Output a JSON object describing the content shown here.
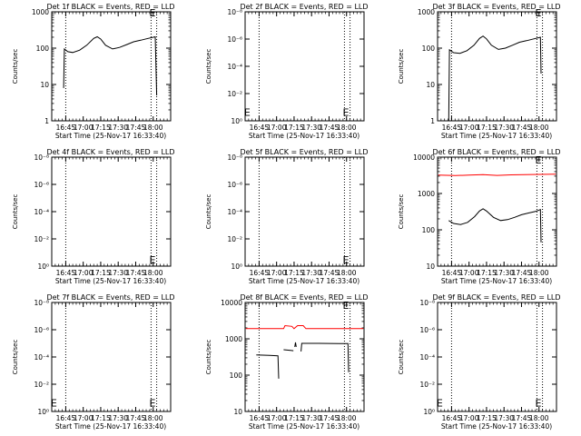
{
  "chart_data": [
    {
      "type": "line",
      "title": "Det 1f BLACK = Events, RED = LLD",
      "xlabel": "Start Time (25-Nov-17 16:33:40)",
      "ylabel": "Counts/sec",
      "y_scale": "log",
      "ylim": [
        1,
        1000
      ],
      "y_ticks": [
        "1",
        "10",
        "100",
        "1000"
      ],
      "xlim": [
        16.55,
        18.25
      ],
      "x_ticks": [
        "16:45",
        "17:00",
        "17:15",
        "17:30",
        "17:45",
        "18:00"
      ],
      "vlines": [
        16.75,
        17.97,
        18.05
      ],
      "markers": [
        {
          "x": 17.99,
          "y": 1000,
          "label": "E"
        }
      ],
      "series": [
        {
          "color": "#000000",
          "segments": [
            [
              [
                16.72,
                8
              ],
              [
                16.73,
                95
              ],
              [
                16.78,
                80
              ],
              [
                16.85,
                76
              ],
              [
                16.95,
                88
              ],
              [
                17.05,
                120
              ],
              [
                17.15,
                185
              ],
              [
                17.2,
                205
              ],
              [
                17.25,
                178
              ],
              [
                17.32,
                120
              ],
              [
                17.42,
                95
              ],
              [
                17.52,
                105
              ],
              [
                17.62,
                125
              ],
              [
                17.72,
                150
              ],
              [
                17.82,
                165
              ],
              [
                17.9,
                180
              ],
              [
                18.03,
                205
              ],
              [
                18.05,
                5
              ]
            ]
          ]
        }
      ]
    },
    {
      "type": "line",
      "title": "Det 2f BLACK = Events, RED = LLD",
      "xlabel": "Start Time (25-Nov-17 16:33:40)",
      "ylabel": "Counts/sec",
      "y_scale": "log",
      "ylim": [
        1,
        1e-08
      ],
      "y_ticks": [
        "10⁰",
        "10⁻²",
        "10⁻⁴",
        "10⁻⁶",
        "10⁻⁸"
      ],
      "xlim": [
        16.55,
        18.25
      ],
      "x_ticks": [
        "16:45",
        "17:00",
        "17:15",
        "17:30",
        "17:45",
        "18:00"
      ],
      "vlines": [
        16.75,
        17.97,
        18.05
      ],
      "markers": [
        {
          "x": 16.58,
          "y": 0.2,
          "label": "E"
        },
        {
          "x": 17.99,
          "y": 0.2,
          "label": "E"
        }
      ],
      "series": []
    },
    {
      "type": "line",
      "title": "Det 3f BLACK = Events, RED = LLD",
      "xlabel": "Start Time (25-Nov-17 16:33:40)",
      "ylabel": "Counts/sec",
      "y_scale": "log",
      "ylim": [
        1,
        1000
      ],
      "y_ticks": [
        "1",
        "10",
        "100",
        "1000"
      ],
      "xlim": [
        16.55,
        18.25
      ],
      "x_ticks": [
        "16:45",
        "17:00",
        "17:15",
        "17:30",
        "17:45",
        "18:00"
      ],
      "vlines": [
        16.75,
        17.97,
        18.05
      ],
      "markers": [
        {
          "x": 17.99,
          "y": 1000,
          "label": "E"
        }
      ],
      "series": [
        {
          "color": "#000000",
          "segments": [
            [
              [
                16.71,
                1
              ],
              [
                16.72,
                90
              ],
              [
                16.78,
                75
              ],
              [
                16.87,
                72
              ],
              [
                16.97,
                85
              ],
              [
                17.07,
                120
              ],
              [
                17.15,
                185
              ],
              [
                17.2,
                215
              ],
              [
                17.25,
                180
              ],
              [
                17.32,
                120
              ],
              [
                17.42,
                92
              ],
              [
                17.52,
                100
              ],
              [
                17.62,
                120
              ],
              [
                17.72,
                145
              ],
              [
                17.82,
                160
              ],
              [
                17.9,
                175
              ],
              [
                18.02,
                200
              ],
              [
                18.03,
                20
              ]
            ]
          ]
        }
      ]
    },
    {
      "type": "line",
      "title": "Det 4f BLACK = Events, RED = LLD",
      "xlabel": "Start Time (25-Nov-17 16:33:40)",
      "ylabel": "Counts/sec",
      "y_scale": "log",
      "ylim": [
        1,
        1e-08
      ],
      "y_ticks": [
        "10⁰",
        "10⁻²",
        "10⁻⁴",
        "10⁻⁶",
        "10⁻⁸"
      ],
      "xlim": [
        16.55,
        18.25
      ],
      "x_ticks": [
        "16:45",
        "17:00",
        "17:15",
        "17:30",
        "17:45",
        "18:00"
      ],
      "vlines": [
        16.75,
        17.97,
        18.05
      ],
      "markers": [
        {
          "x": 17.99,
          "y": 0.3,
          "label": "E"
        }
      ],
      "series": []
    },
    {
      "type": "line",
      "title": "Det 5f BLACK = Events, RED = LLD",
      "xlabel": "Start Time (25-Nov-17 16:33:40)",
      "ylabel": "Counts/sec",
      "y_scale": "log",
      "ylim": [
        1,
        1e-08
      ],
      "y_ticks": [
        "10⁰",
        "10⁻²",
        "10⁻⁴",
        "10⁻⁶",
        "10⁻⁸"
      ],
      "xlim": [
        16.55,
        18.25
      ],
      "x_ticks": [
        "16:45",
        "17:00",
        "17:15",
        "17:30",
        "17:45",
        "18:00"
      ],
      "vlines": [
        16.75,
        17.97,
        18.05
      ],
      "markers": [
        {
          "x": 17.99,
          "y": 0.3,
          "label": "E"
        }
      ],
      "series": []
    },
    {
      "type": "line",
      "title": "Det 6f BLACK = Events, RED = LLD",
      "xlabel": "Start Time (25-Nov-17 16:33:40)",
      "ylabel": "Counts/sec",
      "y_scale": "log",
      "ylim": [
        10,
        10000
      ],
      "y_ticks": [
        "10",
        "100",
        "1000",
        "10000"
      ],
      "xlim": [
        16.55,
        18.25
      ],
      "x_ticks": [
        "16:45",
        "17:00",
        "17:15",
        "17:30",
        "17:45",
        "18:00"
      ],
      "vlines": [
        16.75,
        17.97,
        18.05
      ],
      "markers": [
        {
          "x": 17.99,
          "y": 9000,
          "label": "E"
        }
      ],
      "series": [
        {
          "color": "#ff0000",
          "segments": [
            [
              [
                16.56,
                3200
              ],
              [
                16.8,
                3100
              ],
              [
                17.0,
                3200
              ],
              [
                17.2,
                3300
              ],
              [
                17.4,
                3150
              ],
              [
                17.6,
                3250
              ],
              [
                17.8,
                3300
              ],
              [
                18.0,
                3350
              ],
              [
                18.24,
                3400
              ]
            ]
          ]
        },
        {
          "color": "#000000",
          "segments": [
            [
              [
                16.71,
                180
              ],
              [
                16.78,
                150
              ],
              [
                16.88,
                140
              ],
              [
                16.98,
                160
              ],
              [
                17.08,
                230
              ],
              [
                17.15,
                330
              ],
              [
                17.2,
                380
              ],
              [
                17.25,
                330
              ],
              [
                17.35,
                220
              ],
              [
                17.45,
                180
              ],
              [
                17.55,
                190
              ],
              [
                17.65,
                220
              ],
              [
                17.75,
                260
              ],
              [
                17.85,
                290
              ],
              [
                17.95,
                320
              ],
              [
                18.02,
                360
              ],
              [
                18.03,
                45
              ]
            ]
          ]
        }
      ]
    },
    {
      "type": "line",
      "title": "Det 7f BLACK = Events, RED = LLD",
      "xlabel": "Start Time (25-Nov-17 16:33:40)",
      "ylabel": "Counts/sec",
      "y_scale": "log",
      "ylim": [
        1,
        1e-08
      ],
      "y_ticks": [
        "10⁰",
        "10⁻²",
        "10⁻⁴",
        "10⁻⁶",
        "10⁻⁸"
      ],
      "xlim": [
        16.55,
        18.25
      ],
      "x_ticks": [
        "16:45",
        "17:00",
        "17:15",
        "17:30",
        "17:45",
        "18:00"
      ],
      "vlines": [
        16.75,
        17.97,
        18.05
      ],
      "markers": [
        {
          "x": 16.58,
          "y": 0.2,
          "label": "E"
        },
        {
          "x": 17.99,
          "y": 0.2,
          "label": "E"
        }
      ],
      "series": []
    },
    {
      "type": "line",
      "title": "Det 8f BLACK = Events, RED = LLD",
      "xlabel": "Start Time (25-Nov-17 16:33:40)",
      "ylabel": "Counts/sec",
      "y_scale": "log",
      "ylim": [
        10,
        10000
      ],
      "y_ticks": [
        "10",
        "100",
        "1000",
        "10000"
      ],
      "xlim": [
        16.55,
        18.25
      ],
      "x_ticks": [
        "16:45",
        "17:00",
        "17:15",
        "17:30",
        "17:45",
        "18:00"
      ],
      "vlines": [
        16.75,
        17.97,
        18.05
      ],
      "markers": [
        {
          "x": 17.99,
          "y": 9000,
          "label": "E"
        }
      ],
      "series": [
        {
          "color": "#ff0000",
          "segments": [
            [
              [
                16.56,
                1900
              ],
              [
                17.1,
                1900
              ],
              [
                17.12,
                2300
              ],
              [
                17.22,
                2200
              ],
              [
                17.25,
                1900
              ],
              [
                17.3,
                2300
              ],
              [
                17.38,
                2300
              ],
              [
                17.42,
                1900
              ],
              [
                18.24,
                1900
              ]
            ]
          ]
        },
        {
          "color": "#000000",
          "segments": [
            [
              [
                16.71,
                360
              ],
              [
                16.9,
                350
              ],
              [
                17.02,
                340
              ],
              [
                17.03,
                80
              ]
            ],
            [
              [
                17.1,
                500
              ],
              [
                17.2,
                480
              ],
              [
                17.24,
                470
              ]
            ],
            [
              [
                17.26,
                600
              ],
              [
                17.27,
                800
              ],
              [
                17.28,
                600
              ]
            ],
            [
              [
                17.35,
                450
              ],
              [
                17.36,
                750
              ],
              [
                17.6,
                750
              ],
              [
                17.9,
                740
              ],
              [
                18.02,
                740
              ],
              [
                18.03,
                120
              ]
            ]
          ]
        }
      ]
    },
    {
      "type": "line",
      "title": "Det 9f BLACK = Events, RED = LLD",
      "xlabel": "Start Time (25-Nov-17 16:33:40)",
      "ylabel": "Counts/sec",
      "y_scale": "log",
      "ylim": [
        1,
        1e-08
      ],
      "y_ticks": [
        "10⁰",
        "10⁻²",
        "10⁻⁴",
        "10⁻⁶",
        "10⁻⁸"
      ],
      "xlim": [
        16.55,
        18.25
      ],
      "x_ticks": [
        "16:45",
        "17:00",
        "17:15",
        "17:30",
        "17:45",
        "18:00"
      ],
      "vlines": [
        16.75,
        17.97,
        18.05
      ],
      "markers": [
        {
          "x": 16.58,
          "y": 0.2,
          "label": "E"
        },
        {
          "x": 17.99,
          "y": 0.2,
          "label": "E"
        }
      ],
      "series": []
    }
  ]
}
